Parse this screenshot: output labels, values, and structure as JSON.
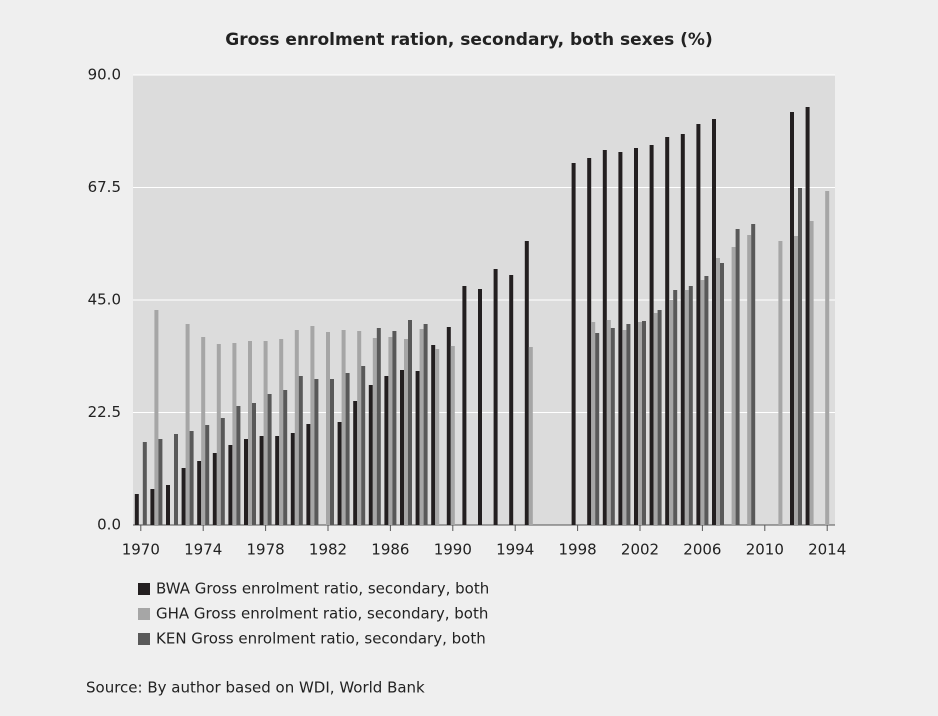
{
  "chart_data": {
    "type": "bar",
    "title": "Gross enrolment ration, secondary, both sexes (%)",
    "source": "Source: By author based on WDI, World Bank",
    "x": [
      1970,
      1971,
      1972,
      1973,
      1974,
      1975,
      1976,
      1977,
      1978,
      1979,
      1980,
      1981,
      1982,
      1983,
      1984,
      1985,
      1986,
      1987,
      1988,
      1989,
      1990,
      1991,
      1992,
      1993,
      1994,
      1995,
      1996,
      1997,
      1998,
      1999,
      2000,
      2001,
      2002,
      2003,
      2004,
      2005,
      2006,
      2007,
      2008,
      2009,
      2010,
      2011,
      2012,
      2013,
      2014
    ],
    "xlim": [
      1969.5,
      2014.5
    ],
    "xticks": [
      1970,
      1974,
      1978,
      1982,
      1986,
      1990,
      1994,
      1998,
      2002,
      2006,
      2010,
      2014
    ],
    "ylim": [
      0,
      90
    ],
    "yticks": [
      {
        "value": 0,
        "label": "0.0"
      },
      22.5,
      {
        "value": 45,
        "label": "45.0"
      },
      67.5,
      {
        "value": 90,
        "label": "90.0"
      }
    ],
    "grid": true,
    "legend": "bottom-left",
    "series": [
      {
        "name": "BWA Gross enrolment ratio, secondary, both",
        "color": "#231f20",
        "values": [
          6.2,
          7.2,
          8.0,
          11.4,
          12.8,
          14.4,
          16.0,
          17.2,
          17.8,
          17.8,
          18.4,
          20.2,
          null,
          20.6,
          24.8,
          28.0,
          29.8,
          31.0,
          30.8,
          36.0,
          39.6,
          47.8,
          47.2,
          51.2,
          50.0,
          56.8,
          null,
          null,
          72.4,
          73.4,
          75.0,
          74.6,
          75.4,
          76.0,
          77.6,
          78.2,
          80.2,
          81.2,
          null,
          null,
          null,
          null,
          82.6,
          83.6,
          null
        ]
      },
      {
        "name": "GHA Gross enrolment ratio, secondary, both",
        "color": "#a6a6a6",
        "values": [
          null,
          43.0,
          null,
          40.2,
          37.6,
          36.2,
          36.4,
          36.8,
          36.8,
          37.2,
          39.0,
          39.8,
          38.6,
          39.0,
          38.8,
          37.4,
          37.6,
          37.2,
          39.2,
          35.2,
          35.8,
          null,
          null,
          null,
          null,
          35.6,
          null,
          null,
          null,
          40.6,
          41.0,
          39.0,
          40.6,
          42.4,
          45.0,
          47.0,
          49.0,
          53.4,
          55.6,
          58.0,
          null,
          56.8,
          57.8,
          60.8,
          66.8
        ]
      },
      {
        "name": "KEN Gross enrolment ratio, secondary, both",
        "color": "#595959",
        "values": [
          16.6,
          17.2,
          18.2,
          18.8,
          20.0,
          21.4,
          23.8,
          24.4,
          26.2,
          27.0,
          29.8,
          29.2,
          29.2,
          30.4,
          31.8,
          39.4,
          38.8,
          41.0,
          40.2,
          null,
          null,
          null,
          null,
          null,
          null,
          null,
          null,
          null,
          null,
          38.4,
          39.4,
          40.2,
          40.8,
          43.0,
          47.0,
          47.8,
          49.8,
          52.4,
          59.2,
          60.2,
          null,
          null,
          67.4,
          null,
          null
        ]
      }
    ]
  }
}
